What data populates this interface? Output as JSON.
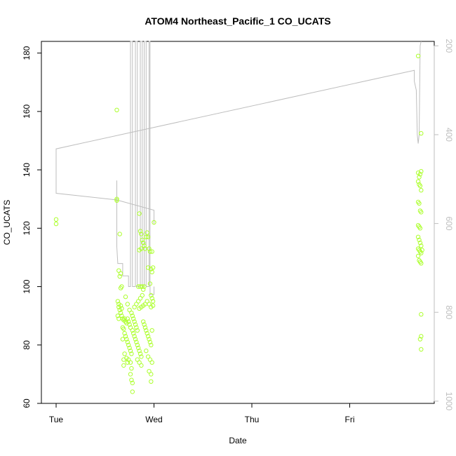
{
  "chart_data": {
    "type": "scatter",
    "title": "ATOM4 Northeast_Pacific_1 CO_UCATS",
    "xlabel": "Date",
    "ylabel": "CO_UCATS",
    "ylim": [
      60,
      184
    ],
    "y_ticks": [
      60,
      80,
      100,
      120,
      140,
      160,
      180
    ],
    "x_unit": "days",
    "x_ticks": [
      {
        "value": 0,
        "label": "Tue"
      },
      {
        "value": 1,
        "label": "Wed"
      },
      {
        "value": 2,
        "label": "Thu"
      },
      {
        "value": 3,
        "label": "Fri"
      }
    ],
    "xlim": [
      -0.15,
      3.9
    ],
    "y2_label": "",
    "y2_ticks": [
      200,
      400,
      600,
      800,
      1000
    ],
    "y2_reversed": true,
    "y2_range_approx": [
      190,
      1005
    ],
    "grid": false,
    "legend": "none",
    "colors": {
      "points": "#adff2f",
      "altitude_line": "#bebebe",
      "axes": "#000000",
      "right_axis": "#bebebe"
    },
    "series": [
      {
        "type": "points",
        "points": [
          [
            0.0,
            123
          ],
          [
            0.0,
            121.5
          ],
          [
            0.62,
            160.5
          ],
          [
            0.62,
            130
          ],
          [
            0.62,
            129.5
          ],
          [
            0.65,
            118
          ],
          [
            0.64,
            105.5
          ],
          [
            0.66,
            104.5
          ],
          [
            0.65,
            103.5
          ],
          [
            0.63,
            95
          ],
          [
            0.64,
            94
          ],
          [
            0.64,
            93
          ],
          [
            0.65,
            92
          ],
          [
            0.66,
            91
          ],
          [
            0.67,
            90
          ],
          [
            0.68,
            89
          ],
          [
            0.69,
            88.5
          ],
          [
            0.7,
            89
          ],
          [
            0.71,
            88
          ],
          [
            0.72,
            87.5
          ],
          [
            0.73,
            89
          ],
          [
            0.74,
            88
          ],
          [
            0.75,
            87
          ],
          [
            0.76,
            86
          ],
          [
            0.63,
            90
          ],
          [
            0.64,
            89
          ],
          [
            0.66,
            99.5
          ],
          [
            0.67,
            100
          ],
          [
            0.66,
            93.5
          ],
          [
            0.67,
            92.5
          ],
          [
            0.68,
            86
          ],
          [
            0.69,
            85.5
          ],
          [
            0.7,
            84
          ],
          [
            0.71,
            83
          ],
          [
            0.72,
            82
          ],
          [
            0.73,
            81
          ],
          [
            0.74,
            80
          ],
          [
            0.75,
            79
          ],
          [
            0.76,
            78
          ],
          [
            0.77,
            77
          ],
          [
            0.68,
            82
          ],
          [
            0.7,
            77
          ],
          [
            0.69,
            75
          ],
          [
            0.72,
            75.5
          ],
          [
            0.69,
            73
          ],
          [
            0.73,
            74
          ],
          [
            0.74,
            75
          ],
          [
            0.76,
            74
          ],
          [
            0.77,
            72
          ],
          [
            0.76,
            70
          ],
          [
            0.77,
            68
          ],
          [
            0.78,
            67
          ],
          [
            0.78,
            64
          ],
          [
            0.71,
            96.5
          ],
          [
            0.73,
            94
          ],
          [
            0.75,
            92
          ],
          [
            0.77,
            91
          ],
          [
            0.78,
            90
          ],
          [
            0.79,
            89
          ],
          [
            0.8,
            88
          ],
          [
            0.81,
            87
          ],
          [
            0.82,
            86
          ],
          [
            0.83,
            85
          ],
          [
            0.78,
            85
          ],
          [
            0.79,
            84
          ],
          [
            0.8,
            83
          ],
          [
            0.81,
            82
          ],
          [
            0.82,
            81
          ],
          [
            0.83,
            80
          ],
          [
            0.84,
            79
          ],
          [
            0.85,
            78
          ],
          [
            0.86,
            77
          ],
          [
            0.87,
            76
          ],
          [
            0.83,
            75
          ],
          [
            0.85,
            74
          ],
          [
            0.87,
            73
          ],
          [
            0.8,
            93
          ],
          [
            0.82,
            94
          ],
          [
            0.84,
            95
          ],
          [
            0.86,
            96
          ],
          [
            0.88,
            97
          ],
          [
            0.89,
            99
          ],
          [
            0.84,
            100
          ],
          [
            0.86,
            100
          ],
          [
            0.88,
            100
          ],
          [
            0.9,
            100
          ],
          [
            0.85,
            92.5
          ],
          [
            0.87,
            93
          ],
          [
            0.89,
            93.5
          ],
          [
            0.91,
            94
          ],
          [
            0.93,
            95
          ],
          [
            0.95,
            94
          ],
          [
            0.97,
            93
          ],
          [
            0.99,
            95
          ],
          [
            0.89,
            88
          ],
          [
            0.9,
            87
          ],
          [
            0.91,
            86
          ],
          [
            0.92,
            85
          ],
          [
            0.93,
            84
          ],
          [
            0.94,
            83
          ],
          [
            0.95,
            82
          ],
          [
            0.96,
            81
          ],
          [
            0.97,
            80
          ],
          [
            0.98,
            85
          ],
          [
            0.92,
            78
          ],
          [
            0.94,
            76
          ],
          [
            0.96,
            75
          ],
          [
            0.98,
            74
          ],
          [
            0.95,
            71
          ],
          [
            0.97,
            70
          ],
          [
            0.97,
            67.5
          ],
          [
            0.85,
            125
          ],
          [
            0.86,
            119
          ],
          [
            0.87,
            118
          ],
          [
            0.88,
            116
          ],
          [
            0.89,
            115
          ],
          [
            0.9,
            114
          ],
          [
            0.91,
            113
          ],
          [
            0.92,
            117
          ],
          [
            0.93,
            118.5
          ],
          [
            0.94,
            117
          ],
          [
            0.95,
            113
          ],
          [
            0.96,
            112
          ],
          [
            0.85,
            112.5
          ],
          [
            0.87,
            113
          ],
          [
            0.98,
            112
          ],
          [
            0.97,
            106
          ],
          [
            0.98,
            105
          ],
          [
            0.99,
            106.5
          ],
          [
            1.0,
            122
          ],
          [
            0.94,
            106.5
          ],
          [
            0.96,
            101
          ],
          [
            0.97,
            97
          ],
          [
            0.98,
            96
          ],
          [
            0.99,
            93.5
          ],
          [
            3.7,
            179
          ],
          [
            3.73,
            152.5
          ],
          [
            3.7,
            139
          ],
          [
            3.72,
            138.5
          ],
          [
            3.73,
            139.5
          ],
          [
            3.71,
            137.5
          ],
          [
            3.7,
            136
          ],
          [
            3.71,
            135
          ],
          [
            3.72,
            134.5
          ],
          [
            3.73,
            133
          ],
          [
            3.7,
            129
          ],
          [
            3.71,
            128.5
          ],
          [
            3.72,
            126
          ],
          [
            3.73,
            125.5
          ],
          [
            3.7,
            121
          ],
          [
            3.71,
            120.5
          ],
          [
            3.72,
            120
          ],
          [
            3.7,
            117
          ],
          [
            3.71,
            116
          ],
          [
            3.72,
            115
          ],
          [
            3.73,
            114
          ],
          [
            3.7,
            113
          ],
          [
            3.71,
            112.5
          ],
          [
            3.72,
            112
          ],
          [
            3.73,
            111.5
          ],
          [
            3.74,
            112.5
          ],
          [
            3.7,
            110.5
          ],
          [
            3.71,
            109
          ],
          [
            3.72,
            108.5
          ],
          [
            3.73,
            108
          ],
          [
            3.73,
            90.5
          ],
          [
            3.73,
            83
          ],
          [
            3.72,
            82
          ],
          [
            3.73,
            78.5
          ]
        ]
      },
      {
        "type": "line",
        "axis": "right",
        "points": [
          [
            0.0,
            532
          ],
          [
            0.0,
            432
          ],
          [
            3.66,
            255
          ],
          [
            3.66,
            280
          ],
          [
            3.68,
            300
          ],
          [
            3.69,
            400
          ],
          [
            3.7,
            420
          ],
          [
            3.71,
            400
          ],
          [
            3.72,
            200
          ],
          [
            3.73,
            180
          ]
        ]
      },
      {
        "type": "line",
        "axis": "right",
        "points": [
          [
            0.0,
            432
          ],
          [
            0.0,
            532
          ],
          [
            0.62,
            547
          ],
          [
            1.0,
            570
          ],
          [
            1.0,
            600
          ]
        ]
      },
      {
        "type": "line",
        "axis": "right",
        "points": [
          [
            0.62,
            503
          ],
          [
            0.62,
            652
          ],
          [
            0.63,
            690
          ],
          [
            0.68,
            690
          ],
          [
            0.68,
            718
          ],
          [
            0.74,
            718
          ],
          [
            0.74,
            742
          ],
          [
            0.76,
            742
          ],
          [
            0.76,
            170
          ],
          [
            0.78,
            170
          ],
          [
            0.78,
            742
          ],
          [
            0.81,
            742
          ],
          [
            0.81,
            170
          ],
          [
            0.83,
            170
          ],
          [
            0.83,
            742
          ],
          [
            0.86,
            742
          ],
          [
            0.86,
            170
          ],
          [
            0.88,
            170
          ],
          [
            0.88,
            742
          ],
          [
            0.9,
            742
          ],
          [
            0.9,
            170
          ],
          [
            0.92,
            170
          ],
          [
            0.92,
            742
          ],
          [
            0.95,
            742
          ],
          [
            0.95,
            170
          ],
          [
            0.96,
            170
          ],
          [
            0.96,
            760
          ],
          [
            1.0,
            760
          ],
          [
            1.0,
            742
          ]
        ]
      }
    ]
  }
}
